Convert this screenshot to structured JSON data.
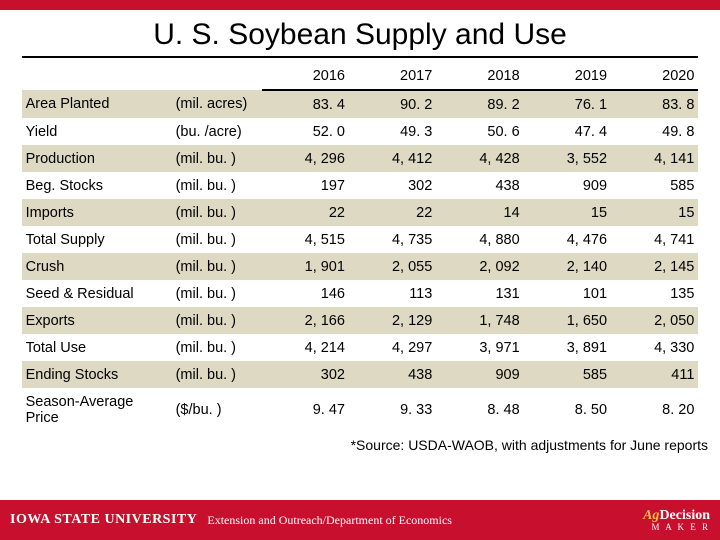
{
  "title": "U. S. Soybean Supply and Use",
  "years": [
    "2016",
    "2017",
    "2018",
    "2019",
    "2020"
  ],
  "rows": [
    {
      "label": "Area Planted",
      "unit": "(mil. acres)",
      "vals": [
        "83. 4",
        "90. 2",
        "89. 2",
        "76. 1",
        "83. 8"
      ],
      "stripe": true
    },
    {
      "label": "Yield",
      "unit": "(bu. /acre)",
      "vals": [
        "52. 0",
        "49. 3",
        "50. 6",
        "47. 4",
        "49. 8"
      ],
      "stripe": false
    },
    {
      "label": "Production",
      "unit": "(mil. bu. )",
      "vals": [
        "4, 296",
        "4, 412",
        "4, 428",
        "3, 552",
        "4, 141"
      ],
      "stripe": true
    },
    {
      "label": "Beg. Stocks",
      "unit": "(mil. bu. )",
      "vals": [
        "197",
        "302",
        "438",
        "909",
        "585"
      ],
      "stripe": false
    },
    {
      "label": "Imports",
      "unit": "(mil. bu. )",
      "vals": [
        "22",
        "22",
        "14",
        "15",
        "15"
      ],
      "stripe": true
    },
    {
      "label": "Total Supply",
      "unit": "(mil. bu. )",
      "vals": [
        "4, 515",
        "4, 735",
        "4, 880",
        "4, 476",
        "4, 741"
      ],
      "stripe": false
    },
    {
      "label": "Crush",
      "unit": "(mil. bu. )",
      "vals": [
        "1, 901",
        "2, 055",
        "2, 092",
        "2, 140",
        "2, 145"
      ],
      "stripe": true
    },
    {
      "label": "Seed & Residual",
      "unit": "(mil. bu. )",
      "vals": [
        "146",
        "113",
        "131",
        "101",
        "135"
      ],
      "stripe": false
    },
    {
      "label": "Exports",
      "unit": "(mil. bu. )",
      "vals": [
        "2, 166",
        "2, 129",
        "1, 748",
        "1, 650",
        "2, 050"
      ],
      "stripe": true
    },
    {
      "label": "Total Use",
      "unit": "(mil. bu. )",
      "vals": [
        "4, 214",
        "4, 297",
        "3, 971",
        "3, 891",
        "4, 330"
      ],
      "stripe": false
    },
    {
      "label": "Ending Stocks",
      "unit": "(mil. bu. )",
      "vals": [
        "302",
        "438",
        "909",
        "585",
        "411"
      ],
      "stripe": true
    },
    {
      "label": "Season-Average Price",
      "unit": "($/bu. )",
      "vals": [
        "9. 47",
        "9. 33",
        "8. 48",
        "8. 50",
        "8. 20"
      ],
      "stripe": false
    }
  ],
  "source": "*Source: USDA-WAOB, with adjustments for June reports",
  "footer": {
    "logo": "IOWA STATE UNIVERSITY",
    "dept": "Extension and Outreach/Department of Economics",
    "ag": "Ag",
    "decision": "Decision",
    "maker": "M A K E R"
  },
  "colors": {
    "red": "#c8102e",
    "gold": "#f1be48",
    "stripe": "#ddd9c3"
  }
}
